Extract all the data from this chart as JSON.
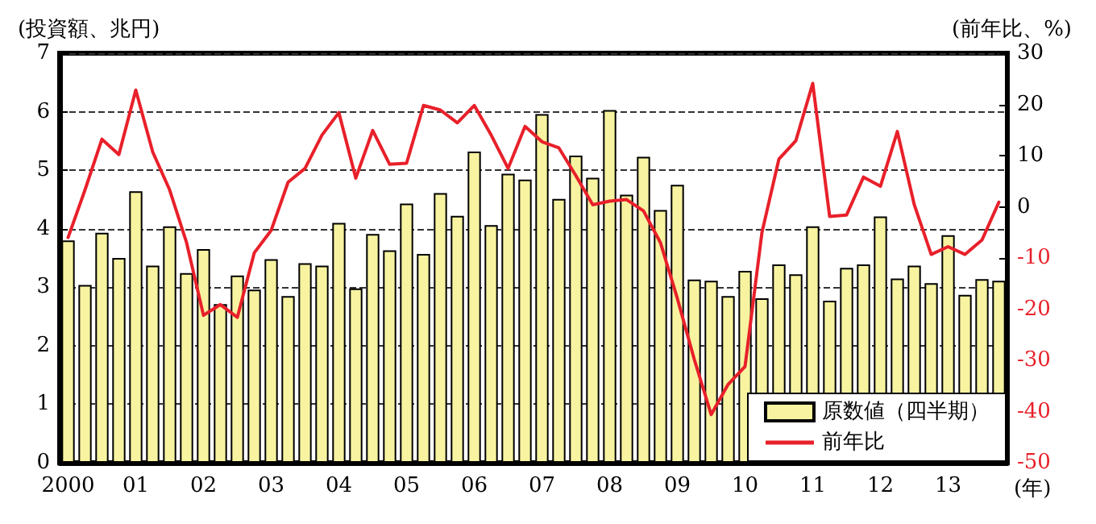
{
  "chart_data": {
    "type": "bar",
    "ylabel": "(投資額、兆円)",
    "y2label": "(前年比、%)",
    "xlabel": "(年)",
    "categories": [
      "2000",
      null,
      null,
      null,
      "01",
      null,
      null,
      null,
      "02",
      null,
      null,
      null,
      "03",
      null,
      null,
      null,
      "04",
      null,
      null,
      null,
      "05",
      null,
      null,
      null,
      "06",
      null,
      null,
      null,
      "07",
      null,
      null,
      null,
      "08",
      null,
      null,
      null,
      "09",
      null,
      null,
      null,
      "10",
      null,
      null,
      null,
      "11",
      null,
      null,
      null,
      "12",
      null,
      null,
      null,
      "13",
      null,
      null,
      null
    ],
    "series": [
      {
        "name": "原数値（四半期）",
        "color": "#f7f3a0",
        "values": [
          3.8,
          3.04,
          3.93,
          3.5,
          4.64,
          3.37,
          4.04,
          3.24,
          3.65,
          2.71,
          3.2,
          2.96,
          3.48,
          2.85,
          3.41,
          3.37,
          4.1,
          2.98,
          3.91,
          3.63,
          4.43,
          3.57,
          4.61,
          4.22,
          5.32,
          4.06,
          4.94,
          4.84,
          5.96,
          4.51,
          5.25,
          4.87,
          6.03,
          4.58,
          5.23,
          4.32,
          4.75,
          3.13,
          3.11,
          2.85,
          3.28,
          2.81,
          3.39,
          3.22,
          4.04,
          2.77,
          3.33,
          3.39,
          4.21,
          3.15,
          3.37,
          3.07,
          3.89,
          2.87,
          3.14,
          3.11
        ]
      },
      {
        "name": "前年比",
        "type": "line",
        "axis": "y2",
        "color": "#e8202a",
        "values": [
          -6.0,
          3.3,
          13.2,
          10.2,
          22.8,
          10.7,
          3.3,
          -7.0,
          -21.2,
          -19.1,
          -21.6,
          -9.0,
          -4.6,
          4.8,
          7.5,
          14.0,
          18.4,
          5.6,
          14.9,
          8.3,
          8.5,
          19.8,
          18.9,
          16.4,
          19.8,
          14.0,
          7.5,
          15.7,
          12.7,
          11.5,
          6.1,
          0.4,
          1.1,
          1.4,
          -0.8,
          -7.0,
          -17.9,
          -29.8,
          -40.6,
          -34.7,
          -31.2,
          -5.0,
          9.3,
          12.9,
          24.1,
          -1.9,
          -1.6,
          5.8,
          4.0,
          14.7,
          0.4,
          -9.3,
          -7.8,
          -9.3,
          -6.5,
          0.9
        ]
      }
    ],
    "ylim": [
      0,
      7
    ],
    "yticks": [
      0,
      1,
      2,
      3,
      4,
      5,
      6,
      7
    ],
    "y2lim": [
      -50,
      30
    ],
    "y2ticks": [
      -50,
      -40,
      -30,
      -20,
      -10,
      0,
      10,
      20,
      30
    ],
    "grid": "y",
    "legend": "bottom right",
    "marker": "none",
    "line_style": "solid"
  }
}
